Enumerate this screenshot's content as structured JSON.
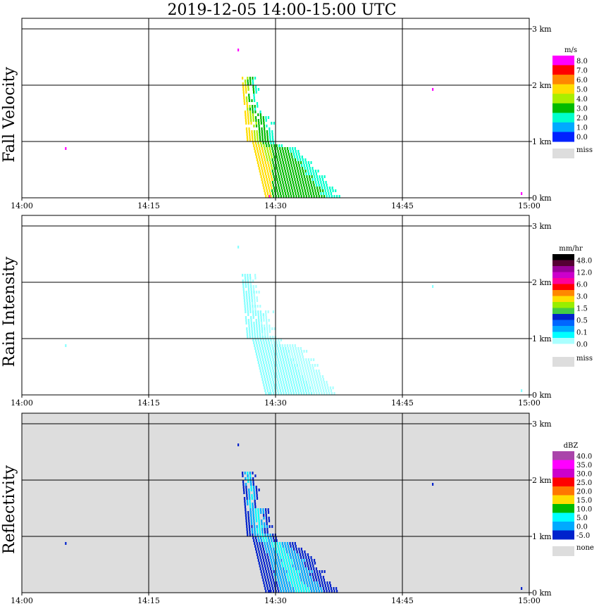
{
  "title": "2019-12-05   14:00-15:00 UTC",
  "chart_data": [
    {
      "type": "heatmap",
      "ylabel": "Fall Velocity",
      "x_ticks": [
        "14:00",
        "14:15",
        "14:30",
        "14:45",
        "15:00"
      ],
      "y_ticks": [
        "0 km",
        "1 km",
        "2 km",
        "3 km"
      ],
      "xlim": [
        "14:00",
        "15:00"
      ],
      "ylim_km": [
        0,
        3.2
      ],
      "grid": true,
      "background": "#ffffff",
      "colorbar": {
        "unit": "m/s",
        "labels": [
          "8.0",
          "7.0",
          "6.0",
          "5.0",
          "4.0",
          "3.0",
          "2.0",
          "1.0",
          "0.0"
        ],
        "colors": [
          "#ff00ff",
          "#ff0000",
          "#ff8800",
          "#ffdd00",
          "#aaee00",
          "#00bb00",
          "#00ffcc",
          "#00aaff",
          "#0022ff"
        ],
        "missing_label": "miss",
        "missing_color": "#dddddd"
      }
    },
    {
      "type": "heatmap",
      "ylabel": "Rain Intensity",
      "x_ticks": [
        "14:00",
        "14:15",
        "14:30",
        "14:45",
        "15:00"
      ],
      "y_ticks": [
        "0 km",
        "1 km",
        "2 km",
        "3 km"
      ],
      "xlim": [
        "14:00",
        "15:00"
      ],
      "ylim_km": [
        0,
        3.2
      ],
      "grid": true,
      "background": "#ffffff",
      "colorbar": {
        "unit": "mm/hr",
        "labels": [
          "48.0",
          "12.0",
          "6.0",
          "3.0",
          "1.5",
          "0.5",
          "0.1",
          "0.0"
        ],
        "colors": [
          "#000000",
          "#550033",
          "#990099",
          "#cc00cc",
          "#ff0099",
          "#ff0000",
          "#ff8800",
          "#ffdd00",
          "#99ee00",
          "#44cc44",
          "#0022cc",
          "#0066ff",
          "#00aaff",
          "#00ffff",
          "#aaffff",
          "#ffffff"
        ],
        "missing_label": "miss",
        "missing_color": "#dddddd"
      }
    },
    {
      "type": "heatmap",
      "ylabel": "Reflectivity",
      "x_ticks": [
        "14:00",
        "14:15",
        "14:30",
        "14:45",
        "15:00"
      ],
      "y_ticks": [
        "0 km",
        "1 km",
        "2 km",
        "3 km"
      ],
      "xlim": [
        "14:00",
        "15:00"
      ],
      "ylim_km": [
        0,
        3.2
      ],
      "grid": true,
      "background": "#dddddd",
      "colorbar": {
        "unit": "dBZ",
        "labels": [
          "40.0",
          "35.0",
          "30.0",
          "25.0",
          "20.0",
          "15.0",
          "10.0",
          "5.0",
          "0.0",
          "-5.0"
        ],
        "colors": [
          "#aa44aa",
          "#ff00ff",
          "#cc00cc",
          "#ff0000",
          "#ff7700",
          "#ffdd00",
          "#00bb00",
          "#00ffff",
          "#00aaff",
          "#0022cc"
        ],
        "missing_label": "none",
        "missing_color": "#dddddd"
      }
    }
  ]
}
